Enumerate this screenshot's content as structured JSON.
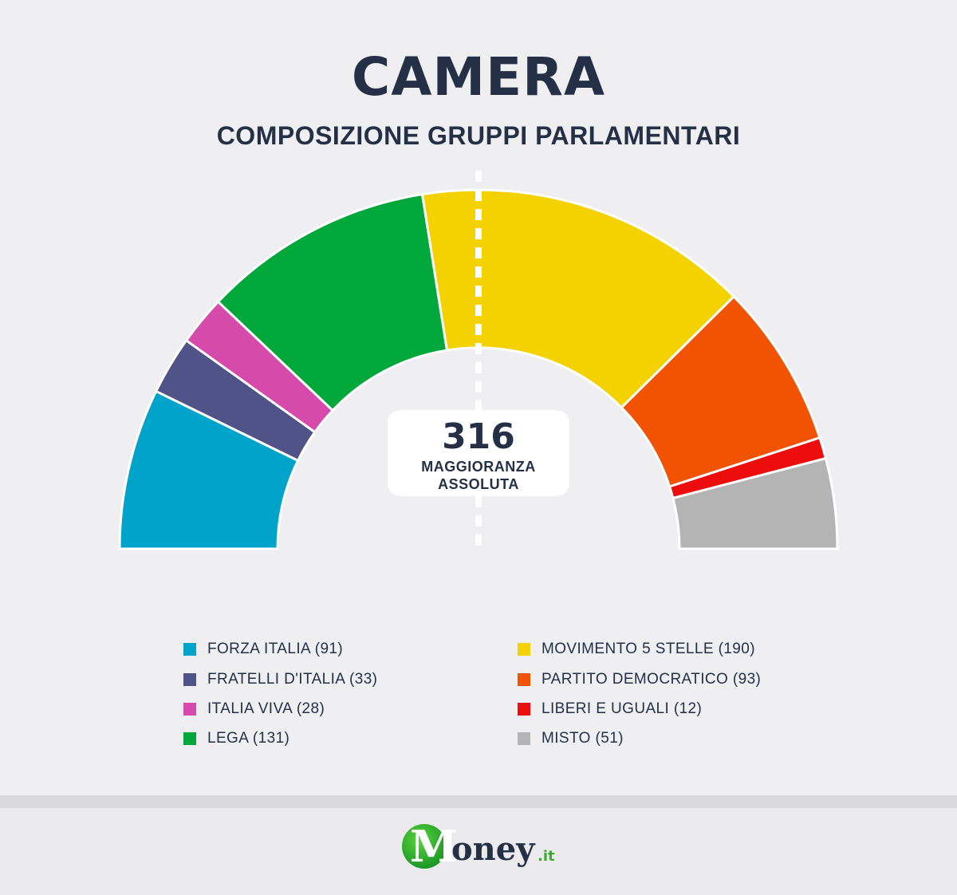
{
  "header": {
    "title": "CAMERA",
    "subtitle": "COMPOSIZIONE GRUPPI PARLAMENTARI"
  },
  "majority": {
    "value": "316",
    "label": "MAGGIORANZA ASSOLUTA"
  },
  "chart_data": {
    "type": "pie",
    "variant": "parliament-semicircle",
    "title": "CAMERA",
    "subtitle": "COMPOSIZIONE GRUPPI PARLAMENTARI",
    "total_seats": 629,
    "majority_threshold": 316,
    "categories": [
      "FORZA ITALIA",
      "FRATELLI D'ITALIA",
      "ITALIA VIVA",
      "LEGA",
      "MOVIMENTO 5 STELLE",
      "PARTITO DEMOCRATICO",
      "LIBERI E UGUALI",
      "MISTO"
    ],
    "values": [
      91,
      33,
      28,
      131,
      190,
      93,
      12,
      51
    ],
    "colors": [
      "#00a3c9",
      "#4f5387",
      "#d64aab",
      "#00a73a",
      "#f3d200",
      "#f15302",
      "#ee0d0d",
      "#b4b4b4"
    ],
    "legend_placement": "bottom"
  },
  "legend": {
    "items": [
      {
        "label": "FORZA ITALIA (91)",
        "color": "#00a3c9"
      },
      {
        "label": "FRATELLI D'ITALIA (33)",
        "color": "#4f5387"
      },
      {
        "label": "ITALIA VIVA (28)",
        "color": "#d64aab"
      },
      {
        "label": "LEGA (131)",
        "color": "#00a73a"
      },
      {
        "label": "MOVIMENTO 5 STELLE (190)",
        "color": "#f3d200"
      },
      {
        "label": "PARTITO DEMOCRATICO (93)",
        "color": "#f15302"
      },
      {
        "label": "LIBERI E UGUALI (12)",
        "color": "#ee0d0d"
      },
      {
        "label": "MISTO (51)",
        "color": "#b4b4b4"
      }
    ]
  },
  "logo": {
    "brand_initial": "M",
    "brand_rest": "oney",
    "brand_tld": ".it"
  }
}
